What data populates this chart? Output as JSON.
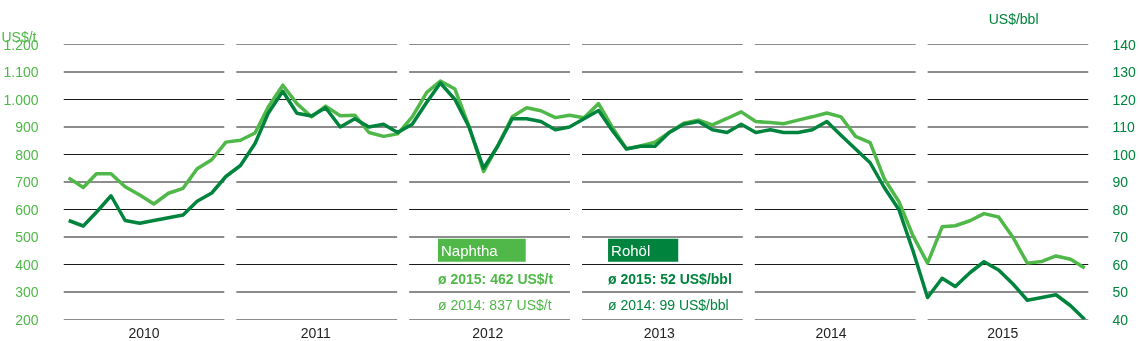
{
  "chart_data": {
    "type": "line",
    "ylabel": "US$/t",
    "y2label": "US$/bbl",
    "x": [
      "2010-01",
      "2010-02",
      "2010-03",
      "2010-04",
      "2010-05",
      "2010-06",
      "2010-07",
      "2010-08",
      "2010-09",
      "2010-10",
      "2010-11",
      "2010-12",
      "2011-01",
      "2011-02",
      "2011-03",
      "2011-04",
      "2011-05",
      "2011-06",
      "2011-07",
      "2011-08",
      "2011-09",
      "2011-10",
      "2011-11",
      "2011-12",
      "2012-01",
      "2012-02",
      "2012-03",
      "2012-04",
      "2012-05",
      "2012-06",
      "2012-07",
      "2012-08",
      "2012-09",
      "2012-10",
      "2012-11",
      "2012-12",
      "2013-01",
      "2013-02",
      "2013-03",
      "2013-04",
      "2013-05",
      "2013-06",
      "2013-07",
      "2013-08",
      "2013-09",
      "2013-10",
      "2013-11",
      "2013-12",
      "2014-01",
      "2014-02",
      "2014-03",
      "2014-04",
      "2014-05",
      "2014-06",
      "2014-07",
      "2014-08",
      "2014-09",
      "2014-10",
      "2014-11",
      "2014-12",
      "2015-01",
      "2015-02",
      "2015-03",
      "2015-04",
      "2015-05",
      "2015-06",
      "2015-07",
      "2015-08",
      "2015-09",
      "2015-10",
      "2015-11",
      "2015-12"
    ],
    "series": [
      {
        "name": "Naphtha",
        "color": "#50b848",
        "values": [
          715,
          680,
          730,
          730,
          683,
          653,
          620,
          659,
          677,
          748,
          781,
          845,
          852,
          878,
          973,
          1052,
          985,
          937,
          976,
          941,
          943,
          880,
          866,
          875,
          937,
          1026,
          1067,
          1038,
          902,
          738,
          831,
          937,
          970,
          959,
          934,
          943,
          934,
          985,
          902,
          821,
          831,
          845,
          880,
          914,
          925,
          908,
          931,
          955,
          920,
          916,
          912,
          925,
          937,
          951,
          937,
          866,
          843,
          712,
          629,
          505,
          405,
          537,
          541,
          559,
          585,
          573,
          500,
          405,
          411,
          431,
          419,
          387
        ]
      },
      {
        "name": "Rohöl",
        "color": "#00843d",
        "axis": "y2",
        "values": [
          76,
          74,
          79,
          85,
          76,
          75,
          76,
          77,
          78,
          83,
          86,
          92,
          96,
          104,
          115,
          123,
          115,
          114,
          117,
          110,
          113,
          110,
          111,
          108,
          111,
          119,
          126,
          120,
          110,
          95,
          103,
          113,
          113,
          112,
          109,
          110,
          113,
          116,
          109,
          102,
          103,
          103,
          108,
          111,
          112,
          109,
          108,
          111,
          108,
          109,
          108,
          108,
          109,
          112,
          107,
          102,
          97,
          88,
          80,
          65,
          48,
          55,
          52,
          57,
          61,
          58,
          53,
          47,
          48,
          49,
          45,
          40
        ]
      }
    ],
    "xticks": [
      {
        "value": "2010-06-10",
        "label": "2010"
      },
      {
        "value": "2011-06-10",
        "label": "2011"
      },
      {
        "value": "2012-06-10",
        "label": "2012"
      },
      {
        "value": "2013-06-10",
        "label": "2013"
      },
      {
        "value": "2014-06-10",
        "label": "2014"
      },
      {
        "value": "2015-06-10",
        "label": "2015"
      }
    ],
    "xlim": [
      "2009-12-21",
      "2015-12-09"
    ],
    "ylim": [
      200,
      1200
    ],
    "yticks": [
      200,
      300,
      400,
      500,
      600,
      700,
      800,
      900,
      {
        "value": 1000,
        "label": "1.000"
      },
      {
        "value": 1100,
        "label": "1.100"
      },
      {
        "value": 1200,
        "label": "1.200"
      }
    ],
    "y2lim": [
      40,
      140
    ],
    "y2ticks": [
      40,
      50,
      60,
      70,
      80,
      90,
      100,
      110,
      120,
      130,
      140
    ],
    "grid": "y",
    "legend": "bottom",
    "annotations": [
      "ø 2015: 462 US$/t",
      "ø 2014: 837 US$/t",
      "ø 2015: 52 US$/bbl",
      "ø 2014: 99 US$/bbl"
    ]
  }
}
